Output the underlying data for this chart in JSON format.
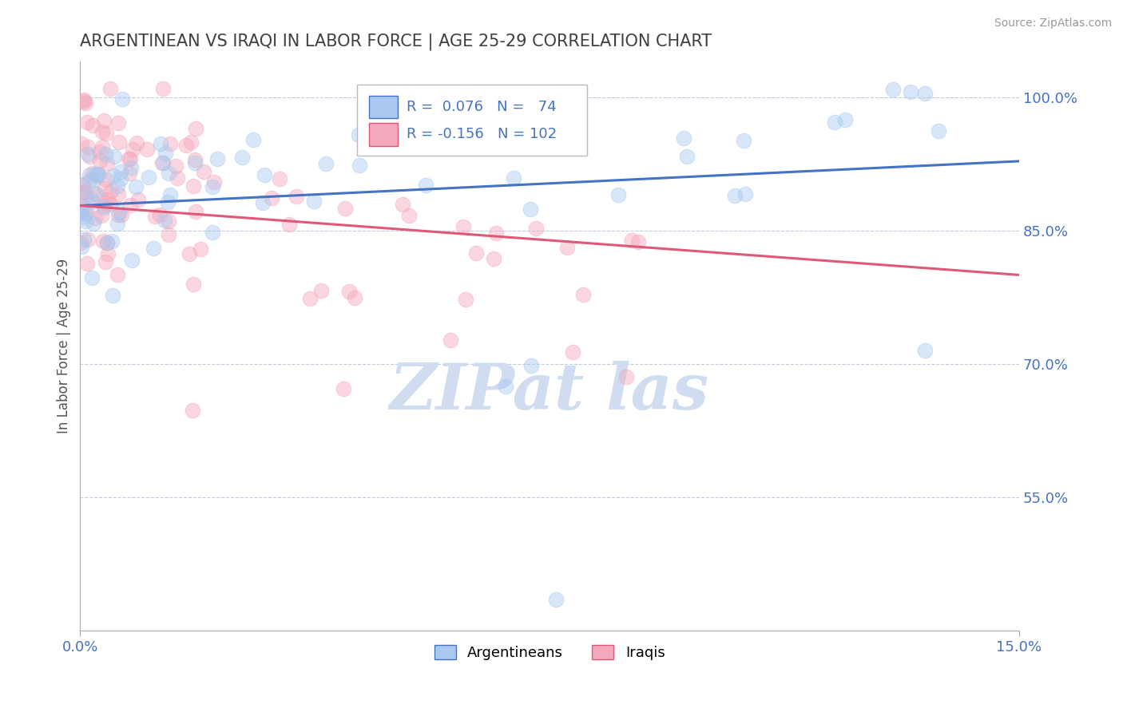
{
  "title": "ARGENTINEAN VS IRAQI IN LABOR FORCE | AGE 25-29 CORRELATION CHART",
  "source_text": "Source: ZipAtlas.com",
  "ylabel": "In Labor Force | Age 25-29",
  "xlim": [
    0.0,
    0.15
  ],
  "ylim": [
    0.4,
    1.04
  ],
  "xtick_positions": [
    0.0,
    0.15
  ],
  "xticklabels": [
    "0.0%",
    "15.0%"
  ],
  "ytick_positions": [
    0.55,
    0.7,
    0.85,
    1.0
  ],
  "yticklabels": [
    "55.0%",
    "70.0%",
    "85.0%",
    "100.0%"
  ],
  "blue_color": "#A8C8F0",
  "pink_color": "#F5A8BC",
  "trendline_blue": "#4472C4",
  "trendline_pink": "#E05878",
  "title_color": "#404040",
  "watermark_color": "#D0DCF0",
  "grid_color": "#C0CDE0",
  "blue_trend_x0": 0.0,
  "blue_trend_y0": 0.878,
  "blue_trend_x1": 0.15,
  "blue_trend_y1": 0.928,
  "pink_trend_x0": 0.0,
  "pink_trend_y0": 0.878,
  "pink_trend_x1": 0.15,
  "pink_trend_y1": 0.8,
  "axis_tick_color": "#4472C4",
  "dot_size": 180,
  "dot_alpha": 0.45,
  "seed": 99
}
